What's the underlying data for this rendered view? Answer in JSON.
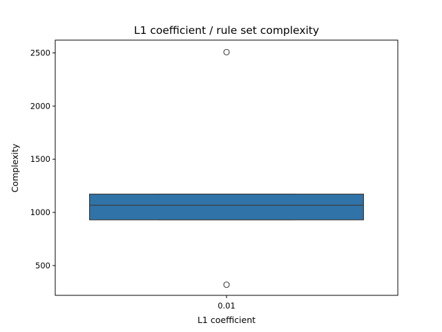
{
  "chart_data": {
    "type": "box",
    "title": "L1 coefficient / rule set complexity",
    "xlabel": "L1 coefficient",
    "ylabel": "Complexity",
    "ylim": [
      220,
      2620
    ],
    "yticks": [
      500,
      1000,
      1500,
      2000,
      2500
    ],
    "categories": [
      "0.01"
    ],
    "boxes": [
      {
        "category": "0.01",
        "q1": 930,
        "median": 1068,
        "q3": 1172,
        "whisker_low": 930,
        "whisker_high": 1172,
        "outliers": [
          2507,
          320
        ]
      }
    ],
    "colors": {
      "box_fill": "#2f73a8",
      "box_edge": "#3d3d3d",
      "axes": "#000000"
    },
    "grid": false,
    "legend": "none"
  }
}
